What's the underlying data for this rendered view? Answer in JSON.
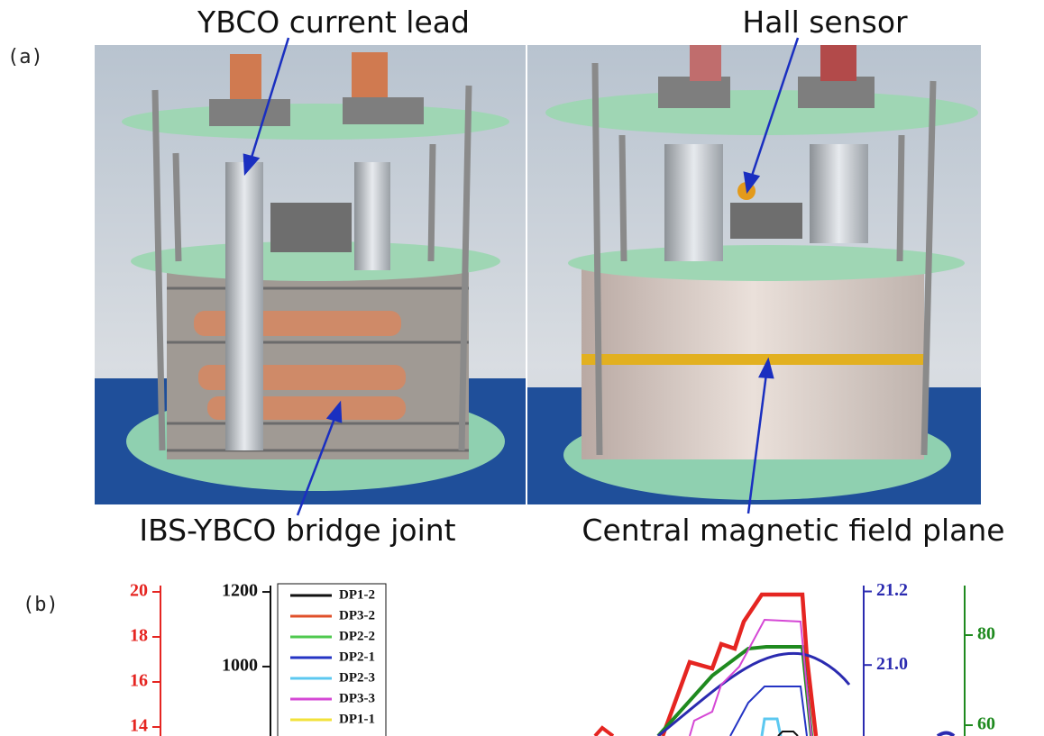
{
  "panel_a": {
    "label": "(a)",
    "annotations": [
      "YBCO current lead",
      "Hall sensor",
      "IBS-YBCO bridge joint",
      "Central magnetic field plane"
    ]
  },
  "panel_b": {
    "label": "(b)",
    "axes": [
      {
        "color": "#e52521",
        "ylim": [
          13.6,
          20.28
        ],
        "yticks": [
          20,
          18,
          16,
          14
        ]
      },
      {
        "color": "#111111",
        "ylim": [
          814,
          1217
        ],
        "yticks": [
          1200,
          1000
        ]
      },
      {
        "color": "#2b2bb0",
        "ylim": [
          20.807,
          21.216
        ],
        "yticks": [
          {
            "value": 21.2,
            "label": "21.2"
          },
          {
            "value": 21.0,
            "label": "21.0"
          }
        ]
      },
      {
        "color": "#1f8a1f",
        "ylim": [
          57.6,
          91
        ],
        "yticks": [
          80,
          60
        ]
      }
    ],
    "legend": [
      {
        "name": "DP1-2",
        "color": "#111111"
      },
      {
        "name": "DP3-2",
        "color": "#e0502a"
      },
      {
        "name": "DP2-2",
        "color": "#4fc94f"
      },
      {
        "name": "DP2-1",
        "color": "#2434c4"
      },
      {
        "name": "DP2-3",
        "color": "#5cc8f0"
      },
      {
        "name": "DP3-3",
        "color": "#d548d5"
      },
      {
        "name": "DP1-1",
        "color": "#f2e23a"
      }
    ]
  }
}
